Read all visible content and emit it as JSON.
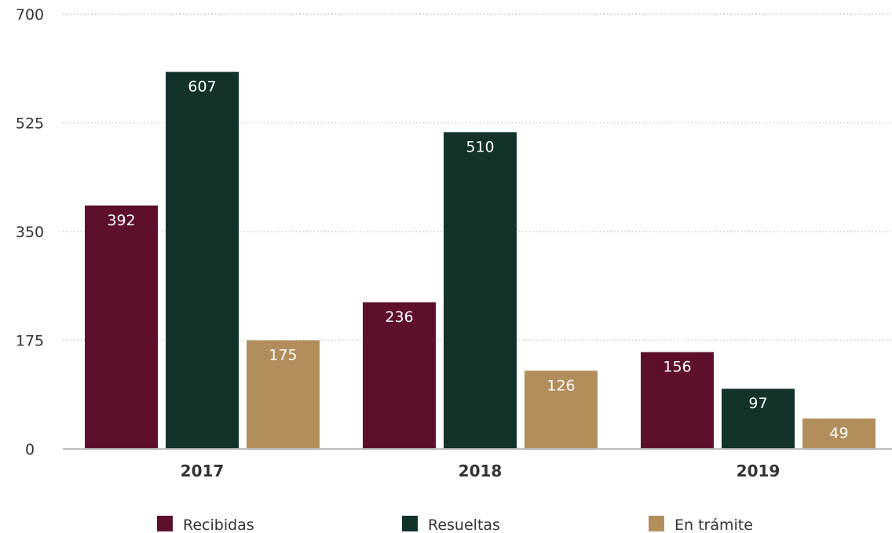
{
  "chart_data": {
    "type": "bar",
    "categories": [
      "2017",
      "2018",
      "2019"
    ],
    "series": [
      {
        "name": "Recibidas",
        "color": "#5f0f2e",
        "values": [
          392,
          236,
          156
        ]
      },
      {
        "name": "Resueltas",
        "color": "#13322b",
        "values": [
          607,
          510,
          97
        ]
      },
      {
        "name": "En trámite",
        "color": "#b38e5d",
        "values": [
          175,
          126,
          49
        ]
      }
    ],
    "yticks": [
      0,
      175,
      350,
      525,
      700
    ],
    "ylim": [
      0,
      700
    ],
    "grid": "dotted horizontal",
    "legend_position": "bottom",
    "data_labels": true,
    "title": "",
    "xlabel": "",
    "ylabel": ""
  }
}
